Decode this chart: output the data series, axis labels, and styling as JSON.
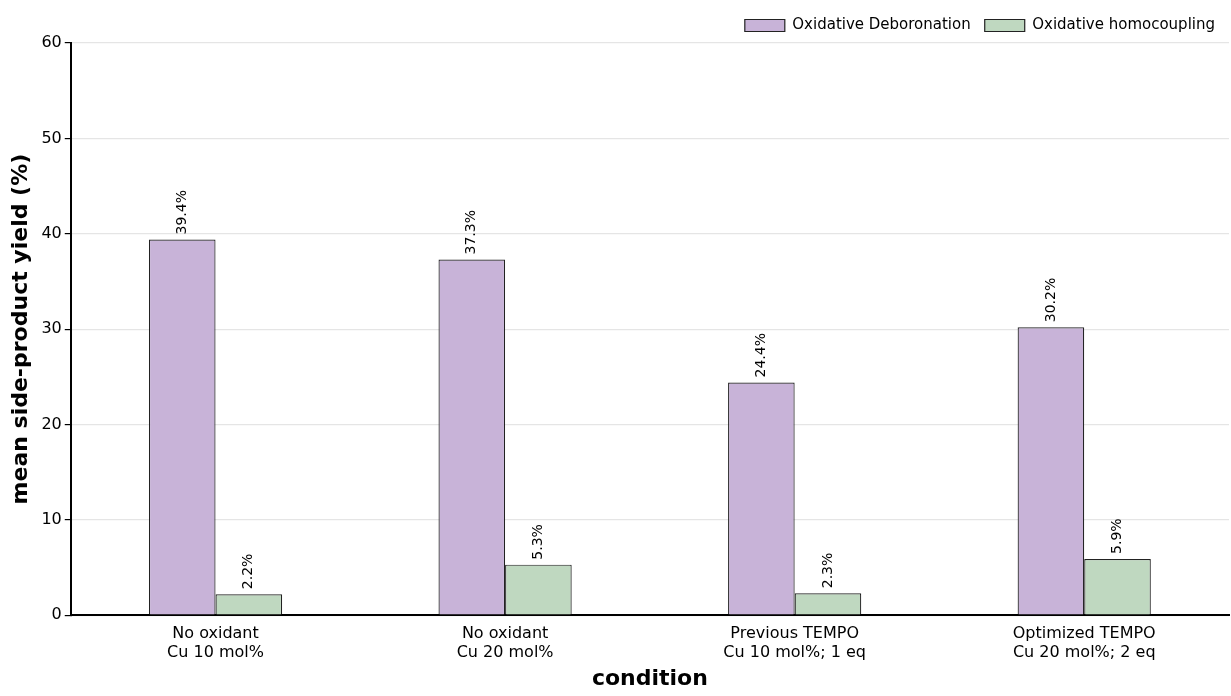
{
  "chart_data": {
    "type": "bar",
    "xlabel": "condition",
    "ylabel": "mean side-product yield (%)",
    "categories": [
      "No oxidant\nCu 10 mol%",
      "No oxidant\nCu 20 mol%",
      "Previous TEMPO\nCu 10 mol%; 1 eq",
      "Optimized TEMPO\nCu 20 mol%; 2 eq"
    ],
    "series": [
      {
        "name": "Oxidative Deboronation",
        "color": "#c8b3d8",
        "values": [
          39.4,
          37.3,
          24.4,
          30.2
        ],
        "value_labels": [
          "39.4%",
          "37.3%",
          "24.4%",
          "30.2%"
        ]
      },
      {
        "name": "Oxidative homocoupling",
        "color": "#bfd8c0",
        "values": [
          2.2,
          5.3,
          2.3,
          5.9
        ],
        "value_labels": [
          "2.2%",
          "5.3%",
          "2.3%",
          "5.9%"
        ]
      }
    ],
    "ylim": [
      0,
      60
    ],
    "yticks": [
      0,
      10,
      20,
      30,
      40,
      50,
      60
    ],
    "grid": "y",
    "legend": "top right"
  }
}
